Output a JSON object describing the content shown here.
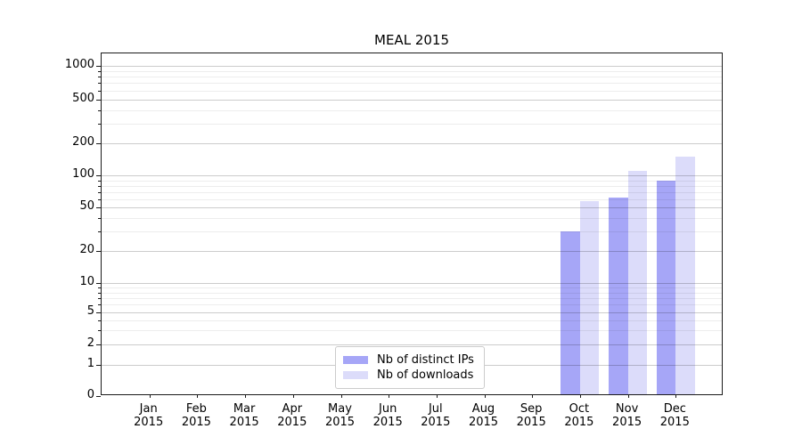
{
  "chart_data": {
    "type": "bar",
    "title": "MEAL 2015",
    "categories": [
      "Jan",
      "Feb",
      "Mar",
      "Apr",
      "May",
      "Jun",
      "Jul",
      "Aug",
      "Sep",
      "Oct",
      "Nov",
      "Dec"
    ],
    "category_year": "2015",
    "series": [
      {
        "name": "Nb of distinct IPs",
        "color": "#a6a6f7",
        "values": [
          null,
          null,
          null,
          null,
          null,
          null,
          null,
          null,
          null,
          29,
          60,
          85
        ]
      },
      {
        "name": "Nb of downloads",
        "color": "#dcdcfa",
        "values": [
          null,
          null,
          null,
          null,
          null,
          null,
          null,
          null,
          null,
          55,
          105,
          145
        ]
      }
    ],
    "y_axis": {
      "scale": "symlog",
      "range": [
        0,
        1000
      ],
      "ticks": [
        0,
        1,
        2,
        5,
        10,
        20,
        50,
        100,
        200,
        500,
        1000
      ],
      "minor_ticks": [
        3,
        4,
        6,
        7,
        8,
        9,
        30,
        40,
        60,
        70,
        80,
        90,
        300,
        400,
        600,
        700,
        800,
        900
      ]
    },
    "legend": {
      "position": "bottom-center",
      "entries": [
        "Nb of distinct IPs",
        "Nb of downloads"
      ]
    },
    "grid": true
  }
}
